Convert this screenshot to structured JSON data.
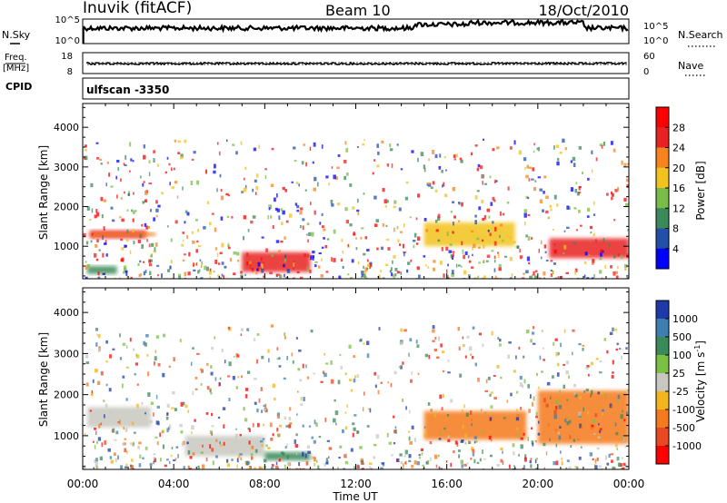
{
  "header": {
    "station": "Inuvik (fitACF)",
    "beam": "Beam 10",
    "date": "18/Oct/2010"
  },
  "sky_panel": {
    "left_label": "N.Sky",
    "right_label": "N.Search",
    "left_ticks": [
      "10^5",
      "10^0"
    ],
    "right_ticks": [
      "10^5",
      "10^0"
    ]
  },
  "freq_panel": {
    "left_label_1": "Freq.",
    "left_label_2": "[MHz]",
    "right_label": "Nave",
    "left_ticks": [
      "18",
      "8"
    ],
    "right_ticks": [
      "60",
      "0"
    ]
  },
  "cpid_panel": {
    "label": "CPID",
    "value": "ulfscan -3350"
  },
  "chart_data": [
    {
      "type": "heatmap",
      "ylabel": "Slant Range [km]",
      "ylim": [
        180,
        4600
      ],
      "xlim": [
        0,
        24
      ],
      "yticks": [
        "1000",
        "2000",
        "3000",
        "4000"
      ],
      "colorbar": {
        "label": "Power [dB]",
        "ticks": [
          "4",
          "8",
          "12",
          "16",
          "20",
          "24",
          "28"
        ],
        "colors": [
          "#0000ff",
          "#244fa8",
          "#3a8a5a",
          "#79bc47",
          "#f2c21e",
          "#f5841e",
          "#e82222",
          "#ff0000"
        ]
      },
      "regions": [
        {
          "x": [
            0.2,
            1.5
          ],
          "y": [
            300,
            500
          ],
          "level": 2
        },
        {
          "x": [
            0.3,
            2.8
          ],
          "y": [
            1200,
            1400
          ],
          "level": 6
        },
        {
          "x": [
            0.4,
            3.2
          ],
          "y": [
            1250,
            1350
          ],
          "level": 5
        },
        {
          "x": [
            7.0,
            10.0
          ],
          "y": [
            350,
            850
          ],
          "level": 6
        },
        {
          "x": [
            15.0,
            19.0
          ],
          "y": [
            1000,
            1600
          ],
          "level": 4
        },
        {
          "x": [
            20.5,
            24.0
          ],
          "y": [
            700,
            1200
          ],
          "level": 6
        }
      ]
    },
    {
      "type": "heatmap",
      "xlabel": "Time UT",
      "ylabel": "Slant Range [km]",
      "ylim": [
        180,
        4600
      ],
      "xlim": [
        0,
        24
      ],
      "xticks": [
        "00:00",
        "04:00",
        "08:00",
        "12:00",
        "16:00",
        "20:00",
        "00:00"
      ],
      "yticks": [
        "1000",
        "2000",
        "3000",
        "4000"
      ],
      "colorbar": {
        "label": "Velocity [m s^-1]",
        "ticks": [
          "1000",
          "500",
          "100",
          "25",
          "-25",
          "-100",
          "-500",
          "-1000"
        ],
        "colors": [
          "#1f3aa8",
          "#3d7fb0",
          "#3a8a5a",
          "#7cc043",
          "#c8c8c0",
          "#f2b51e",
          "#f57a1e",
          "#e84822",
          "#ff0000"
        ]
      },
      "regions": [
        {
          "x": [
            0.2,
            3.0
          ],
          "y": [
            1200,
            1700
          ],
          "level": 4
        },
        {
          "x": [
            4.5,
            8.0
          ],
          "y": [
            500,
            1000
          ],
          "level": 4
        },
        {
          "x": [
            8.0,
            10.0
          ],
          "y": [
            400,
            600
          ],
          "level": 2
        },
        {
          "x": [
            15.0,
            19.5
          ],
          "y": [
            900,
            1600
          ],
          "level": 6
        },
        {
          "x": [
            20.0,
            24.0
          ],
          "y": [
            800,
            2100
          ],
          "level": 6
        }
      ]
    }
  ]
}
